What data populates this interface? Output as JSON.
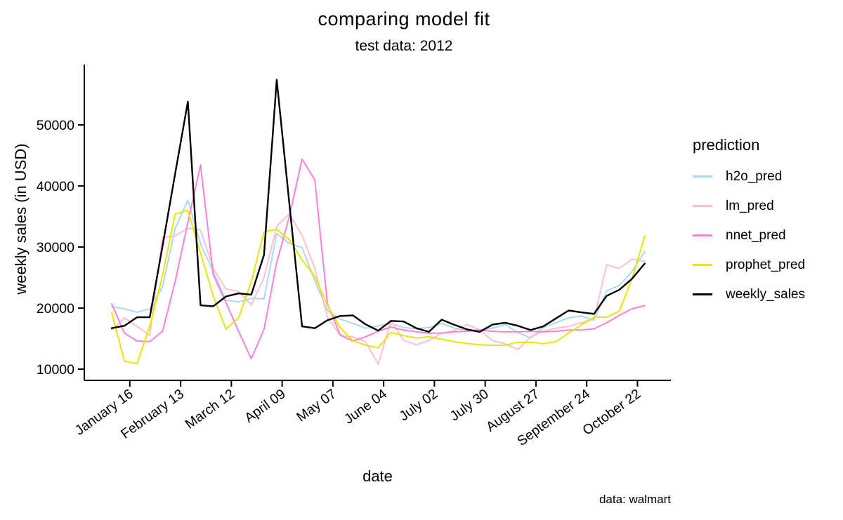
{
  "title": "comparing model fit",
  "subtitle": "test data: 2012",
  "caption": "data: walmart",
  "chart_data": {
    "type": "line",
    "title": "comparing model fit",
    "subtitle": "test data: 2012",
    "xlabel": "date",
    "ylabel": "weekly sales (in USD)",
    "legend_title": "prediction",
    "legend_position": "right",
    "grid": false,
    "ylim": [
      9500,
      60000
    ],
    "y_ticks": [
      10000,
      20000,
      30000,
      40000,
      50000
    ],
    "x_ticks": [
      {
        "label": "January 16",
        "day": 10
      },
      {
        "label": "February 13",
        "day": 38
      },
      {
        "label": "March 12",
        "day": 66
      },
      {
        "label": "April 09",
        "day": 94
      },
      {
        "label": "May 07",
        "day": 122
      },
      {
        "label": "June 04",
        "day": 150
      },
      {
        "label": "July 02",
        "day": 178
      },
      {
        "label": "July 30",
        "day": 206
      },
      {
        "label": "August 27",
        "day": 234
      },
      {
        "label": "September 24",
        "day": 262
      },
      {
        "label": "October 22",
        "day": 290
      }
    ],
    "x": [
      "Jan 06",
      "Jan 13",
      "Jan 20",
      "Jan 27",
      "Feb 03",
      "Feb 10",
      "Feb 17",
      "Feb 24",
      "Mar 02",
      "Mar 09",
      "Mar 16",
      "Mar 23",
      "Mar 30",
      "Apr 06",
      "Apr 13",
      "Apr 20",
      "Apr 27",
      "May 04",
      "May 11",
      "May 18",
      "May 25",
      "Jun 01",
      "Jun 08",
      "Jun 15",
      "Jun 22",
      "Jun 29",
      "Jul 06",
      "Jul 13",
      "Jul 20",
      "Jul 27",
      "Aug 03",
      "Aug 10",
      "Aug 17",
      "Aug 24",
      "Aug 31",
      "Sep 07",
      "Sep 14",
      "Sep 21",
      "Sep 28",
      "Oct 05",
      "Oct 12",
      "Oct 19",
      "Oct 26"
    ],
    "series": [
      {
        "name": "h2o_pred",
        "color": "#ABD9EE",
        "values": [
          20200,
          19900,
          19300,
          19900,
          23500,
          33000,
          37700,
          30500,
          26000,
          21300,
          21000,
          21600,
          21500,
          32200,
          30600,
          29900,
          24500,
          19600,
          18200,
          17500,
          16700,
          17100,
          17400,
          16800,
          16600,
          16800,
          17500,
          16700,
          16300,
          16450,
          16700,
          17300,
          16000,
          15100,
          16800,
          17600,
          18400,
          18700,
          18000,
          22800,
          23700,
          26000,
          29300
        ]
      },
      {
        "name": "lm_pred",
        "color": "#FFC0CD",
        "values": [
          16400,
          18400,
          17000,
          15500,
          31600,
          31800,
          33100,
          32800,
          26500,
          23100,
          22750,
          20500,
          25000,
          33400,
          35400,
          31900,
          26500,
          18500,
          15500,
          15300,
          14500,
          10800,
          17950,
          14700,
          14000,
          14700,
          15900,
          16300,
          17300,
          16400,
          14700,
          14150,
          13200,
          15300,
          16200,
          16700,
          17000,
          17600,
          18200,
          27100,
          26500,
          28000,
          27650
        ]
      },
      {
        "name": "nnet_pred",
        "color": "#FF80D9",
        "values": [
          20700,
          15900,
          14600,
          14500,
          16200,
          24300,
          34000,
          43450,
          25500,
          20900,
          16200,
          11700,
          16500,
          27500,
          35000,
          44400,
          41000,
          20700,
          15600,
          14600,
          15300,
          16200,
          16900,
          16400,
          16100,
          15900,
          15900,
          16100,
          16200,
          16400,
          16200,
          16100,
          16100,
          16200,
          16100,
          16200,
          16400,
          16400,
          16600,
          17600,
          18800,
          19900,
          20400
        ]
      },
      {
        "name": "prophet_pred",
        "color": "#E6E600",
        "values": [
          19300,
          11300,
          10900,
          17000,
          25300,
          35400,
          36000,
          29000,
          22000,
          16550,
          18400,
          24300,
          32500,
          32900,
          31200,
          27900,
          25200,
          20450,
          16800,
          14650,
          13930,
          13470,
          16000,
          15500,
          15100,
          15300,
          14900,
          14500,
          14200,
          14000,
          13900,
          13900,
          14400,
          14400,
          14150,
          14500,
          15900,
          17250,
          18500,
          18500,
          19500,
          24800,
          31800
        ]
      },
      {
        "name": "weekly_sales",
        "color": "#000000",
        "values": [
          16700,
          17100,
          18500,
          18500,
          30100,
          42000,
          53800,
          20450,
          20300,
          21900,
          22400,
          22200,
          28700,
          57400,
          37100,
          17000,
          16700,
          18000,
          18700,
          18800,
          17350,
          16300,
          17900,
          17800,
          16700,
          16100,
          18100,
          17250,
          16500,
          16100,
          17300,
          17600,
          17100,
          16400,
          17000,
          18300,
          19600,
          19300,
          19050,
          22000,
          23000,
          24800,
          27300
        ]
      }
    ]
  }
}
